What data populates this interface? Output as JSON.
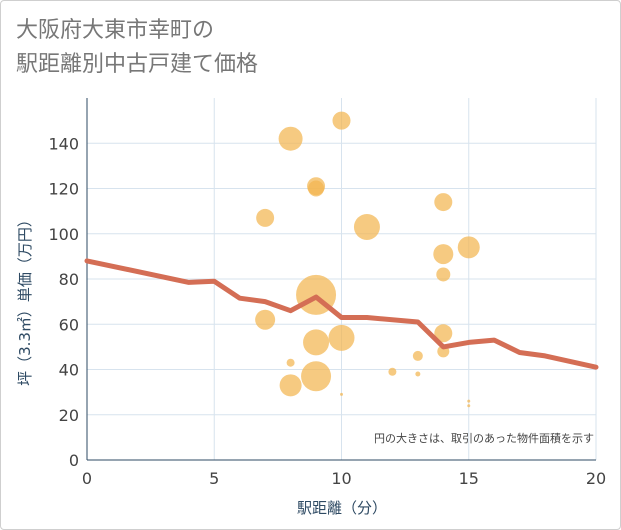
{
  "title": {
    "line1": "大阪府大東市幸町の",
    "line2": "駅距離別中古戸建て価格"
  },
  "chart_data": {
    "type": "scatter",
    "title": "大阪府大東市幸町の駅距離別中古戸建て価格",
    "xlabel": "駅距離（分）",
    "ylabel": "坪（3.3㎡）単価（万円）",
    "xlim": [
      0,
      20
    ],
    "ylim": [
      0,
      160
    ],
    "xticks": [
      0,
      5,
      10,
      15,
      20
    ],
    "yticks": [
      0,
      20,
      40,
      60,
      80,
      100,
      120,
      140
    ],
    "grid": true,
    "annotation": "円の大きさは、取引のあった物件面積を示す",
    "colors": {
      "bubble": "#f2b550",
      "line": "#d46e55"
    },
    "points": [
      {
        "x": 8,
        "y": 142,
        "size": 12
      },
      {
        "x": 10,
        "y": 150,
        "size": 9
      },
      {
        "x": 9,
        "y": 121,
        "size": 9
      },
      {
        "x": 9,
        "y": 120,
        "size": 8
      },
      {
        "x": 7,
        "y": 107,
        "size": 9
      },
      {
        "x": 11,
        "y": 103,
        "size": 13
      },
      {
        "x": 14,
        "y": 114,
        "size": 9
      },
      {
        "x": 14,
        "y": 91,
        "size": 10
      },
      {
        "x": 15,
        "y": 94,
        "size": 11
      },
      {
        "x": 14,
        "y": 82,
        "size": 7
      },
      {
        "x": 9,
        "y": 73,
        "size": 20
      },
      {
        "x": 7,
        "y": 62,
        "size": 10
      },
      {
        "x": 9,
        "y": 52,
        "size": 13
      },
      {
        "x": 10,
        "y": 54,
        "size": 13
      },
      {
        "x": 14,
        "y": 56,
        "size": 9
      },
      {
        "x": 13,
        "y": 46,
        "size": 5
      },
      {
        "x": 14,
        "y": 48,
        "size": 6
      },
      {
        "x": 8,
        "y": 43,
        "size": 4
      },
      {
        "x": 9,
        "y": 37,
        "size": 15
      },
      {
        "x": 8,
        "y": 33,
        "size": 11
      },
      {
        "x": 12,
        "y": 39,
        "size": 4
      },
      {
        "x": 13,
        "y": 38,
        "size": 2.5
      },
      {
        "x": 10,
        "y": 29,
        "size": 1.5
      },
      {
        "x": 15,
        "y": 26,
        "size": 1.5
      },
      {
        "x": 15,
        "y": 24,
        "size": 1.5
      }
    ],
    "line": {
      "x": [
        0,
        4,
        5,
        6,
        7,
        8,
        9,
        10,
        11,
        13,
        14,
        15,
        16,
        17,
        18,
        20
      ],
      "y": [
        88,
        78.5,
        79,
        71.5,
        70,
        66,
        72,
        63,
        63,
        61,
        50,
        52,
        53,
        47.5,
        46,
        41
      ]
    }
  }
}
